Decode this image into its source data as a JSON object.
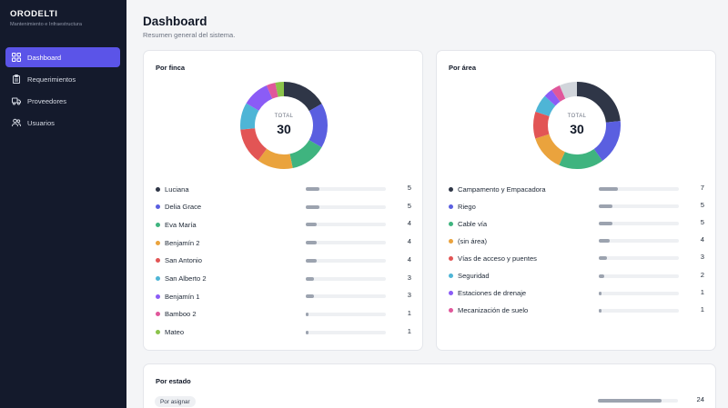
{
  "app": {
    "brand": "ORODELTI",
    "subtitle": "Mantenimiento e Infraestructura"
  },
  "sidebar": {
    "items": [
      {
        "label": "Dashboard",
        "icon": "grid-icon",
        "active": true
      },
      {
        "label": "Requerimientos",
        "icon": "clipboard-icon",
        "active": false
      },
      {
        "label": "Proveedores",
        "icon": "truck-icon",
        "active": false
      },
      {
        "label": "Usuarios",
        "icon": "users-icon",
        "active": false
      }
    ]
  },
  "header": {
    "title": "Dashboard",
    "subtitle": "Resumen general del sistema."
  },
  "colors": {
    "sidebar_bg": "#141a2c",
    "accent": "#5b54e8",
    "bar": "#9ca3af"
  },
  "cards": {
    "finca": {
      "title": "Por finca",
      "total_label": "TOTAL",
      "total": "30",
      "items": [
        {
          "label": "Luciana",
          "count": "5",
          "color": "#2f3647",
          "fraction": 0.1667
        },
        {
          "label": "Delia Grace",
          "count": "5",
          "color": "#5a5fe0",
          "fraction": 0.1667
        },
        {
          "label": "Eva María",
          "count": "4",
          "color": "#3fb47f",
          "fraction": 0.1333
        },
        {
          "label": "Benjamín 2",
          "count": "4",
          "color": "#eaa33d",
          "fraction": 0.1333
        },
        {
          "label": "San Antonio",
          "count": "4",
          "color": "#e25555",
          "fraction": 0.1333
        },
        {
          "label": "San Alberto 2",
          "count": "3",
          "color": "#4eb5d6",
          "fraction": 0.1
        },
        {
          "label": "Benjamín 1",
          "count": "3",
          "color": "#8b5cf6",
          "fraction": 0.1
        },
        {
          "label": "Bamboo 2",
          "count": "1",
          "color": "#e0579b",
          "fraction": 0.0333
        },
        {
          "label": "Mateo",
          "count": "1",
          "color": "#8bc34a",
          "fraction": 0.0333
        }
      ]
    },
    "area": {
      "title": "Por área",
      "total_label": "TOTAL",
      "total": "30",
      "items": [
        {
          "label": "Campamento y Empacadora",
          "count": "7",
          "color": "#2f3647",
          "fraction": 0.2333
        },
        {
          "label": "Riego",
          "count": "5",
          "color": "#5a5fe0",
          "fraction": 0.1667
        },
        {
          "label": "Cable vía",
          "count": "5",
          "color": "#3fb47f",
          "fraction": 0.1667
        },
        {
          "label": "(sin área)",
          "count": "4",
          "color": "#eaa33d",
          "fraction": 0.1333
        },
        {
          "label": "Vías de acceso y puentes",
          "count": "3",
          "color": "#e25555",
          "fraction": 0.1
        },
        {
          "label": "Seguridad",
          "count": "2",
          "color": "#4eb5d6",
          "fraction": 0.0667
        },
        {
          "label": "Estaciones de drenaje",
          "count": "1",
          "color": "#8b5cf6",
          "fraction": 0.0333
        },
        {
          "label": "Mecanización de suelo",
          "count": "1",
          "color": "#e0579b",
          "fraction": 0.0333
        },
        {
          "label": "",
          "count": "",
          "color": "#d1d5db",
          "fraction": 0.0667,
          "hidden": true
        }
      ]
    },
    "estado": {
      "title": "Por estado",
      "items": [
        {
          "label": "Por asignar",
          "count": "24",
          "fraction": 0.8
        }
      ]
    }
  }
}
